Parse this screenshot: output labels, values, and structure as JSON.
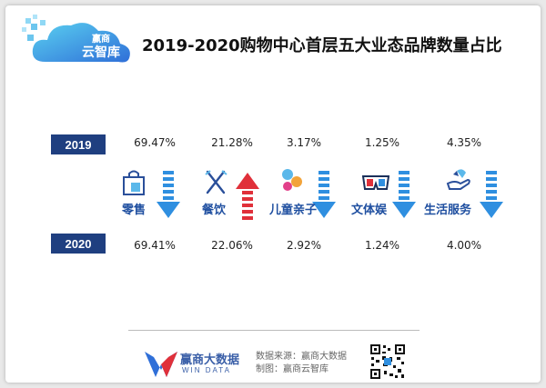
{
  "logo": {
    "line1": "赢商",
    "line2": "云智库"
  },
  "chart_data": {
    "type": "table",
    "title": "2019-2020购物中心首层五大业态品牌数量占比",
    "categories": [
      "零售",
      "餐饮",
      "儿童亲子",
      "文体娱",
      "生活服务"
    ],
    "series": [
      {
        "name": "2019",
        "labels": [
          "69.47%",
          "21.28%",
          "3.17%",
          "1.25%",
          "4.35%"
        ],
        "values": [
          69.47,
          21.28,
          3.17,
          1.25,
          4.35
        ]
      },
      {
        "name": "2020",
        "labels": [
          "69.41%",
          "22.06%",
          "2.92%",
          "1.24%",
          "4.00%"
        ],
        "values": [
          69.41,
          22.06,
          2.92,
          1.24,
          4.0
        ]
      }
    ],
    "trend": [
      "down",
      "up",
      "down",
      "down",
      "down"
    ],
    "colors": {
      "up": "#e0303a",
      "down": "#2f8fe0",
      "badge": "#1f3f80",
      "label": "#1f4fa0"
    }
  },
  "footer": {
    "brand_cn": "赢商大数据",
    "brand_en": "WIN DATA",
    "source": "数据来源：赢商大数据",
    "made_by": "制图：赢商云智库"
  }
}
